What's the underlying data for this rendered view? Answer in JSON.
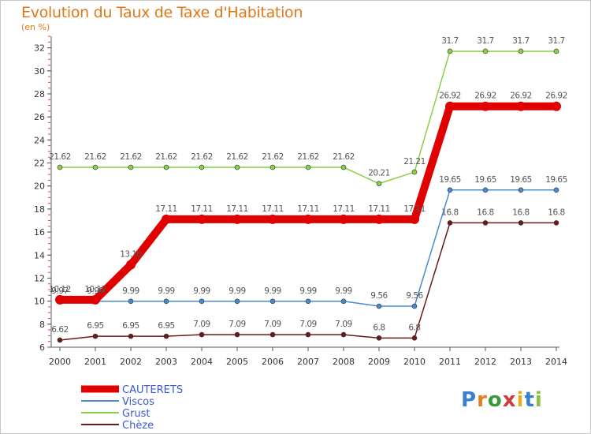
{
  "title": "Evolution du Taux de Taxe d'Habitation",
  "subtitle": "(en %)",
  "logo": "Proxiti",
  "chart_data": {
    "type": "line",
    "x": [
      "2000",
      "2001",
      "2002",
      "2003",
      "2004",
      "2005",
      "2006",
      "2007",
      "2008",
      "2009",
      "2010",
      "2011",
      "2012",
      "2013",
      "2014"
    ],
    "ylim": [
      6,
      33
    ],
    "yticks": [
      6,
      8,
      10,
      12,
      14,
      16,
      18,
      20,
      22,
      24,
      26,
      28,
      30,
      32
    ],
    "grid": false,
    "legend": "bottom-left",
    "series": [
      {
        "name": "CAUTERETS",
        "color": "#e00000",
        "width": 10,
        "values": [
          10.12,
          10.12,
          13.16,
          17.11,
          17.11,
          17.11,
          17.11,
          17.11,
          17.11,
          17.11,
          17.11,
          26.92,
          26.92,
          26.92,
          26.92
        ],
        "labels": [
          "10.12",
          "10.12",
          "13.16",
          "17.11",
          "17.11",
          "17.11",
          "17.11",
          "17.11",
          "17.11",
          "17.11",
          "17.11",
          "26.92",
          "26.92",
          "26.92",
          "26.92"
        ]
      },
      {
        "name": "Viscos",
        "color": "#4a8ad0",
        "width": 1.5,
        "values": [
          9.97,
          9.99,
          9.99,
          9.99,
          9.99,
          9.99,
          9.99,
          9.99,
          9.99,
          9.56,
          9.56,
          19.65,
          19.65,
          19.65,
          19.65
        ],
        "labels": [
          "9.97",
          "9.99",
          "9.99",
          "9.99",
          "9.99",
          "9.99",
          "9.99",
          "9.99",
          "9.99",
          "9.56",
          "9.56",
          "19.65",
          "19.65",
          "19.65",
          "19.65"
        ]
      },
      {
        "name": "Grust",
        "color": "#88d048",
        "width": 1.5,
        "values": [
          21.62,
          21.62,
          21.62,
          21.62,
          21.62,
          21.62,
          21.62,
          21.62,
          21.62,
          20.21,
          21.21,
          31.7,
          31.7,
          31.7,
          31.7
        ],
        "labels": [
          "21.62",
          "21.62",
          "21.62",
          "21.62",
          "21.62",
          "21.62",
          "21.62",
          "21.62",
          "21.62",
          "20.21",
          "21.21",
          "31.7",
          "31.7",
          "31.7",
          "31.7"
        ]
      },
      {
        "name": "Chèze",
        "color": "#6b1a1a",
        "width": 1.5,
        "values": [
          6.62,
          6.95,
          6.95,
          6.95,
          7.09,
          7.09,
          7.09,
          7.09,
          7.09,
          6.8,
          6.8,
          16.8,
          16.8,
          16.8,
          16.8
        ],
        "labels": [
          "6.62",
          "6.95",
          "6.95",
          "6.95",
          "7.09",
          "7.09",
          "7.09",
          "7.09",
          "7.09",
          "6.8",
          "6.8",
          "16.8",
          "16.8",
          "16.8",
          "16.8"
        ]
      }
    ]
  }
}
